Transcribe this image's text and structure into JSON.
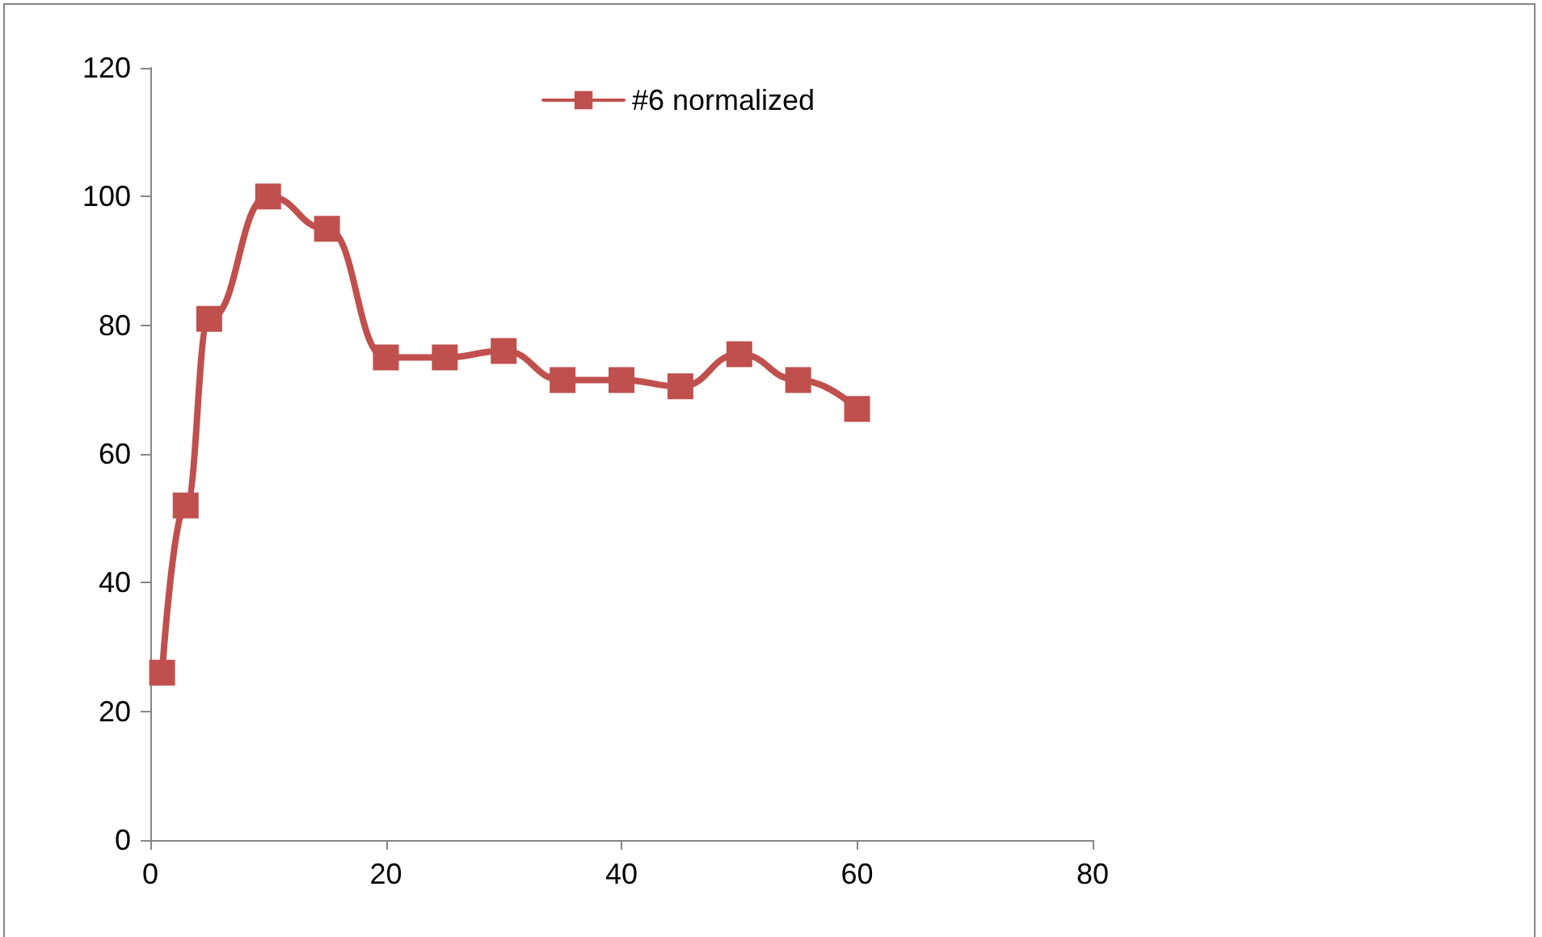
{
  "chart_data": {
    "type": "line",
    "x": [
      1,
      3,
      5,
      10,
      15,
      20,
      25,
      30,
      35,
      40,
      45,
      50,
      55,
      60
    ],
    "series": [
      {
        "name": "#6 normalized",
        "color": "#c0504d",
        "values": [
          26,
          52,
          81,
          100,
          95,
          75,
          75,
          76,
          71.5,
          71.5,
          70.5,
          75.5,
          71.5,
          67
        ]
      }
    ],
    "xlim": [
      0,
      80
    ],
    "xticks": [
      0,
      20,
      40,
      60,
      80
    ],
    "ylim": [
      0,
      120
    ],
    "yticks": [
      0,
      20,
      40,
      60,
      80,
      100,
      120
    ],
    "grid": false,
    "legend": "top",
    "marker": "square",
    "line_style": "solid"
  }
}
